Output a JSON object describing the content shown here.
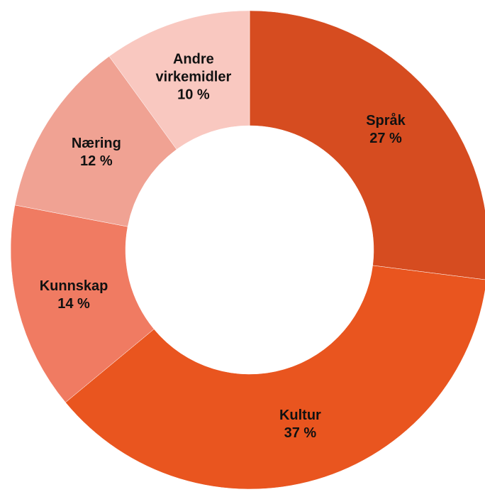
{
  "chart_data": {
    "type": "donut",
    "categories": [
      "Språk",
      "Kultur",
      "Kunnskap",
      "Næring",
      "Andre virkemidler"
    ],
    "values": [
      27,
      37,
      14,
      12,
      10
    ],
    "value_labels": [
      "27 %",
      "37 %",
      "14 %",
      "12 %",
      "10 %"
    ],
    "colors": [
      "#d64c20",
      "#e9551f",
      "#f07b62",
      "#f0a293",
      "#f9c8c0"
    ]
  }
}
